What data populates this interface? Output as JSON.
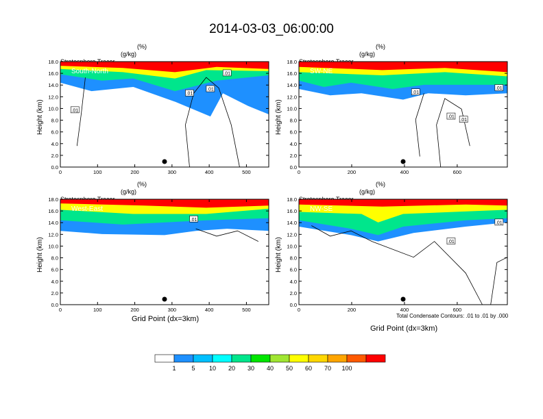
{
  "figure_title": "2014-03-03_06:00:00",
  "contour_note": "Total Condensate Contours: .01 to .01 by .000",
  "chart_data": [
    {
      "type": "heatmap",
      "panel_label": "South-North",
      "header_line1": "Stratosphere Tracer",
      "header_unit1": "(%)",
      "header_line2": "Total Condensate",
      "header_unit2": "(g/kg)",
      "ylabel": "Height (km)",
      "xlabel": "",
      "xlim": [
        0,
        560
      ],
      "ylim": [
        0,
        18
      ],
      "xticks": [
        0,
        100,
        200,
        300,
        400,
        500
      ],
      "yticks": [
        "0.0",
        "2.0",
        "4.0",
        "6.0",
        "8.0",
        "10.0",
        "12.0",
        "14.0",
        "16.0",
        "18.0"
      ],
      "contour_labels": [
        ".01",
        ".01",
        ".01",
        ".01"
      ],
      "marker_x": 280
    },
    {
      "type": "heatmap",
      "panel_label": "SW-NE",
      "header_line1": "Stratosphere Tracer",
      "header_unit1": "(%)",
      "header_line2": "Total Condensate",
      "header_unit2": "(g/kg)",
      "ylabel": "Height (km)",
      "xlabel": "",
      "xlim": [
        0,
        790
      ],
      "ylim": [
        0,
        18
      ],
      "xticks": [
        0,
        200,
        400,
        600
      ],
      "yticks": [
        "0.0",
        "2.0",
        "4.0",
        "6.0",
        "8.0",
        "10.0",
        "12.0",
        "14.0",
        "16.0",
        "18.0"
      ],
      "contour_labels": [
        ".01",
        ".01",
        ".01",
        ".01"
      ],
      "marker_x": 395
    },
    {
      "type": "heatmap",
      "panel_label": "West-East",
      "header_line1": "Stratosphere Tracer",
      "header_unit1": "(%)",
      "header_line2": "Total Condensate",
      "header_unit2": "(g/kg)",
      "ylabel": "Height (km)",
      "xlabel": "Grid Point (dx=3km)",
      "xlim": [
        0,
        560
      ],
      "ylim": [
        0,
        18
      ],
      "xticks": [
        0,
        100,
        200,
        300,
        400,
        500
      ],
      "yticks": [
        "0.0",
        "2.0",
        "4.0",
        "6.0",
        "8.0",
        "10.0",
        "12.0",
        "14.0",
        "16.0",
        "18.0"
      ],
      "contour_labels": [
        ".01"
      ],
      "marker_x": 280
    },
    {
      "type": "heatmap",
      "panel_label": "NW-SE",
      "header_line1": "Stratosphere Tracer",
      "header_unit1": "(%)",
      "header_line2": "Total Condensate",
      "header_unit2": "(g/kg)",
      "ylabel": "Height (km)",
      "xlabel": "Grid Point (dx=3km)",
      "xlim": [
        0,
        790
      ],
      "ylim": [
        0,
        18
      ],
      "xticks": [
        0,
        200,
        400,
        600
      ],
      "yticks": [
        "0.0",
        "2.0",
        "4.0",
        "6.0",
        "8.0",
        "10.0",
        "12.0",
        "14.0",
        "16.0",
        "18.0"
      ],
      "contour_labels": [
        ".01",
        ".01"
      ],
      "marker_x": 395
    }
  ],
  "colorbar": {
    "colors": [
      "#ffffff",
      "#1e90ff",
      "#00bfff",
      "#00ffff",
      "#00e68c",
      "#00e600",
      "#a0e632",
      "#ffff00",
      "#ffd700",
      "#ffa500",
      "#ff5a00",
      "#ff0000"
    ],
    "labels": [
      "1",
      "5",
      "10",
      "20",
      "30",
      "40",
      "50",
      "60",
      "70",
      "100"
    ]
  }
}
